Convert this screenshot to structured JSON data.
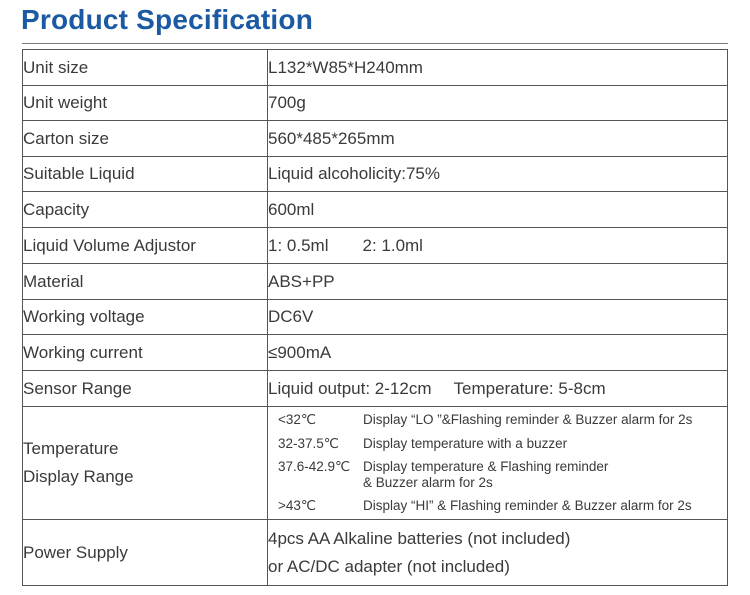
{
  "title": "Product Specification",
  "rows": [
    {
      "label": "Unit size",
      "value": "L132*W85*H240mm"
    },
    {
      "label": "Unit weight",
      "value": "700g"
    },
    {
      "label": "Carton size",
      "value": "560*485*265mm"
    },
    {
      "label": "Suitable Liquid",
      "value": "Liquid alcoholicity:75%"
    },
    {
      "label": "Capacity",
      "value": "600ml"
    },
    {
      "label": "Liquid Volume Adjustor",
      "value_a": "1:  0.5ml",
      "value_b": "2:  1.0ml"
    },
    {
      "label": "Material",
      "value": "ABS+PP"
    },
    {
      "label": "Working voltage",
      "value": "DC6V"
    },
    {
      "label": "Working current",
      "value": "≤900mA"
    },
    {
      "label": "Sensor Range",
      "value_a": "Liquid output: 2-12cm",
      "value_b": "Temperature: 5-8cm"
    }
  ],
  "temperature": {
    "label_line1": "Temperature",
    "label_line2": "Display Range",
    "lines": [
      {
        "range": "<32℃",
        "text": "Display “LO ”&Flashing reminder & Buzzer alarm for 2s"
      },
      {
        "range": "32-37.5℃",
        "text": "Display temperature with a buzzer"
      },
      {
        "range": "37.6-42.9℃",
        "text": "Display temperature & Flashing reminder",
        "text_cont": "& Buzzer alarm for 2s"
      },
      {
        "range": ">43℃",
        "text": "Display “HI” & Flashing reminder & Buzzer alarm  for 2s"
      }
    ]
  },
  "power": {
    "label": "Power Supply",
    "line1": "4pcs AA Alkaline batteries (not included)",
    "line2": "or AC/DC adapter (not included)"
  }
}
